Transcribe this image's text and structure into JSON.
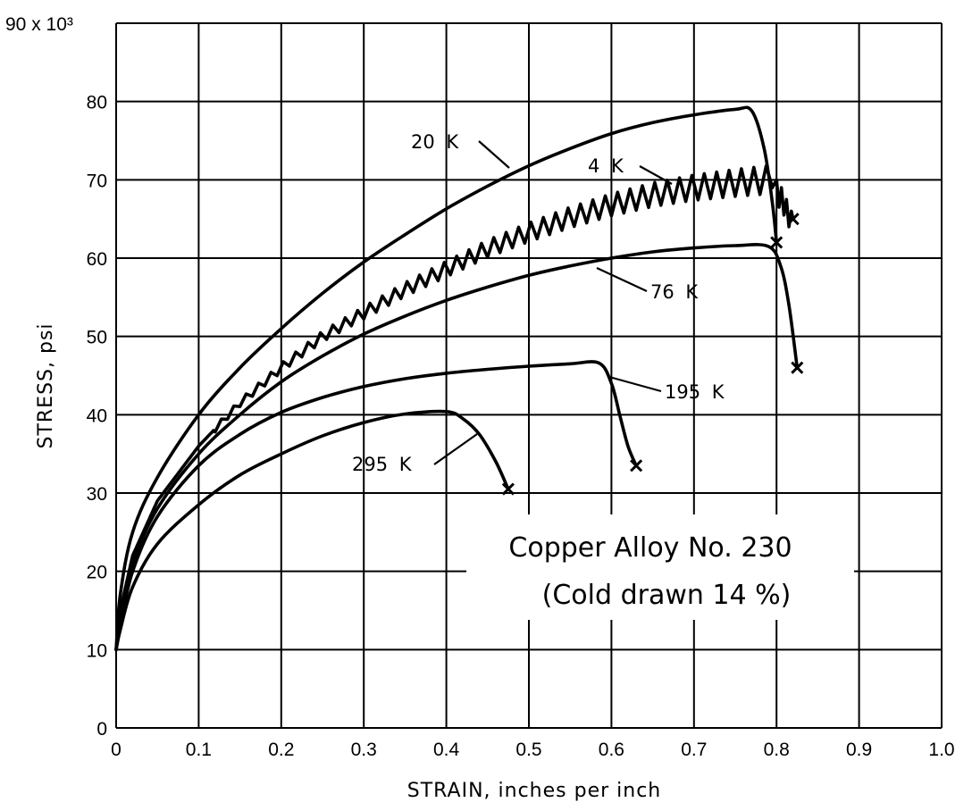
{
  "chart_data": {
    "type": "line",
    "title": "",
    "xlabel": "STRAIN, inches per inch",
    "ylabel": "STRESS, psi",
    "y_multiplier_label": "90 x 10³",
    "xlim": [
      0,
      1.0
    ],
    "ylim": [
      0,
      90
    ],
    "x_ticks": [
      "0",
      "0.1",
      "0.2",
      "0.3",
      "0.4",
      "0.5",
      "0.6",
      "0.7",
      "0.8",
      "0.9",
      "1.0"
    ],
    "y_ticks": [
      "0",
      "10",
      "20",
      "30",
      "40",
      "50",
      "60",
      "70",
      "80"
    ],
    "grid": true,
    "annotation_lines": [
      "Copper Alloy No. 230",
      "(Cold drawn 14 %)"
    ],
    "series": [
      {
        "name": "20 K",
        "serrated": false,
        "points": [
          [
            0,
            10
          ],
          [
            0.005,
            17
          ],
          [
            0.02,
            25
          ],
          [
            0.05,
            32
          ],
          [
            0.1,
            40
          ],
          [
            0.15,
            46
          ],
          [
            0.2,
            51
          ],
          [
            0.25,
            55.5
          ],
          [
            0.3,
            59.5
          ],
          [
            0.35,
            63
          ],
          [
            0.4,
            66.3
          ],
          [
            0.45,
            69.2
          ],
          [
            0.5,
            71.8
          ],
          [
            0.55,
            74
          ],
          [
            0.6,
            75.9
          ],
          [
            0.65,
            77.3
          ],
          [
            0.7,
            78.3
          ],
          [
            0.75,
            79
          ],
          [
            0.77,
            78.8
          ],
          [
            0.785,
            74
          ],
          [
            0.795,
            67
          ],
          [
            0.8,
            62
          ]
        ],
        "fracture": [
          0.8,
          62
        ]
      },
      {
        "name": "4 K",
        "serrated": true,
        "points": [
          [
            0,
            10
          ],
          [
            0.005,
            15
          ],
          [
            0.02,
            22
          ],
          [
            0.05,
            29
          ],
          [
            0.1,
            36
          ],
          [
            0.15,
            41.5
          ],
          [
            0.2,
            46
          ],
          [
            0.25,
            50
          ],
          [
            0.3,
            53
          ],
          [
            0.35,
            56
          ],
          [
            0.4,
            58.6
          ],
          [
            0.45,
            61.2
          ],
          [
            0.5,
            63.3
          ],
          [
            0.55,
            65.2
          ],
          [
            0.6,
            66.8
          ],
          [
            0.65,
            68.1
          ],
          [
            0.7,
            69
          ],
          [
            0.75,
            69.6
          ],
          [
            0.79,
            70
          ],
          [
            0.8,
            68.5
          ],
          [
            0.81,
            66
          ],
          [
            0.82,
            65
          ]
        ],
        "fracture": [
          0.82,
          65
        ]
      },
      {
        "name": "76 K",
        "serrated": false,
        "points": [
          [
            0,
            10
          ],
          [
            0.005,
            14
          ],
          [
            0.02,
            21
          ],
          [
            0.05,
            28
          ],
          [
            0.1,
            35
          ],
          [
            0.15,
            40
          ],
          [
            0.2,
            44.2
          ],
          [
            0.25,
            47.5
          ],
          [
            0.3,
            50.3
          ],
          [
            0.35,
            52.6
          ],
          [
            0.4,
            54.6
          ],
          [
            0.45,
            56.3
          ],
          [
            0.5,
            57.8
          ],
          [
            0.55,
            59
          ],
          [
            0.6,
            60
          ],
          [
            0.65,
            60.8
          ],
          [
            0.7,
            61.3
          ],
          [
            0.75,
            61.6
          ],
          [
            0.79,
            61.5
          ],
          [
            0.805,
            59
          ],
          [
            0.815,
            54
          ],
          [
            0.825,
            46
          ]
        ],
        "fracture": [
          0.825,
          46
        ]
      },
      {
        "name": "195 K",
        "serrated": false,
        "points": [
          [
            0,
            10
          ],
          [
            0.005,
            13
          ],
          [
            0.02,
            20
          ],
          [
            0.05,
            27
          ],
          [
            0.1,
            33.5
          ],
          [
            0.15,
            37.5
          ],
          [
            0.2,
            40.3
          ],
          [
            0.25,
            42.2
          ],
          [
            0.3,
            43.6
          ],
          [
            0.35,
            44.6
          ],
          [
            0.4,
            45.3
          ],
          [
            0.45,
            45.8
          ],
          [
            0.5,
            46.2
          ],
          [
            0.55,
            46.5
          ],
          [
            0.585,
            46.6
          ],
          [
            0.6,
            44
          ],
          [
            0.61,
            40
          ],
          [
            0.62,
            36
          ],
          [
            0.63,
            33.5
          ]
        ],
        "fracture": [
          0.63,
          33.5
        ]
      },
      {
        "name": "295 K",
        "serrated": false,
        "points": [
          [
            0,
            10
          ],
          [
            0.005,
            12.5
          ],
          [
            0.02,
            18
          ],
          [
            0.05,
            23.5
          ],
          [
            0.1,
            28.5
          ],
          [
            0.15,
            32.3
          ],
          [
            0.2,
            35
          ],
          [
            0.25,
            37.3
          ],
          [
            0.3,
            39
          ],
          [
            0.35,
            40.1
          ],
          [
            0.4,
            40.4
          ],
          [
            0.42,
            39.5
          ],
          [
            0.44,
            37.5
          ],
          [
            0.46,
            34
          ],
          [
            0.475,
            30.5
          ]
        ],
        "fracture": [
          0.475,
          30.5
        ]
      }
    ]
  }
}
